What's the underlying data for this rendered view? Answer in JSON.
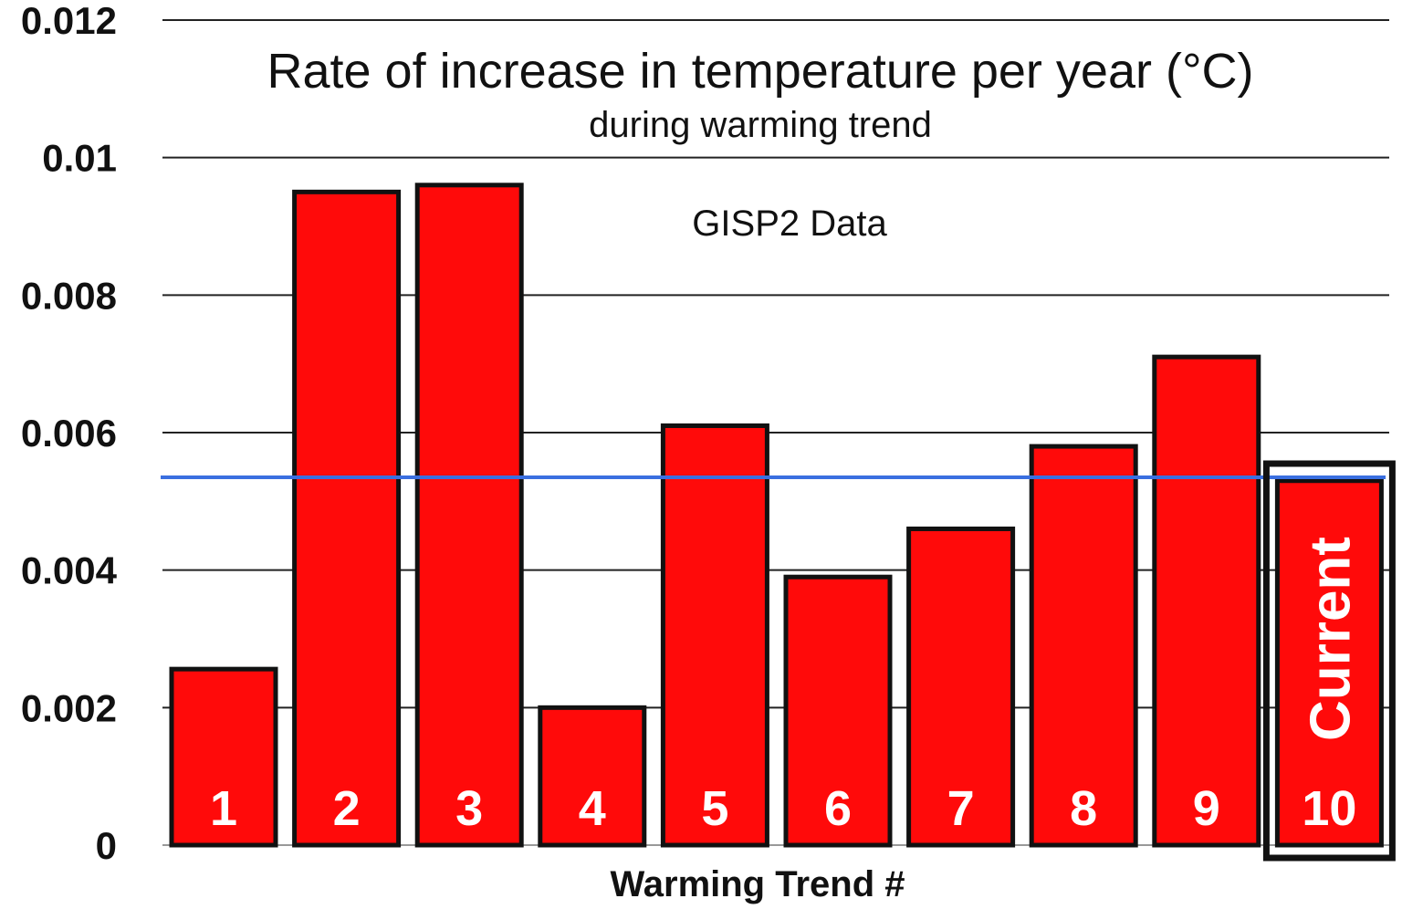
{
  "chart_data": {
    "type": "bar",
    "title": "Rate of increase in temperature per year (°C)",
    "subtitle": "during warming trend",
    "annotation": "GISP2 Data",
    "xlabel": "Warming Trend #",
    "ylabel": "",
    "ylim": [
      0,
      0.012
    ],
    "yticks": [
      "0",
      "0.002",
      "0.004",
      "0.006",
      "0.008",
      "0.01",
      "0.012"
    ],
    "ytick_values": [
      0,
      0.002,
      0.004,
      0.006,
      0.008,
      0.01,
      0.012
    ],
    "grid": true,
    "categories": [
      "1",
      "2",
      "3",
      "4",
      "5",
      "6",
      "7",
      "8",
      "9",
      "10"
    ],
    "values": [
      0.00256,
      0.0095,
      0.0096,
      0.002,
      0.0061,
      0.0039,
      0.0046,
      0.0058,
      0.0071,
      0.0053
    ],
    "highlighted_category": "10",
    "highlight_label": "Current",
    "reference_line": 0.00535,
    "colors": {
      "bar": "#ff0a0a",
      "bar_edge": "#111111",
      "reference_line": "#3a6fe0",
      "grid": "#222222"
    }
  }
}
